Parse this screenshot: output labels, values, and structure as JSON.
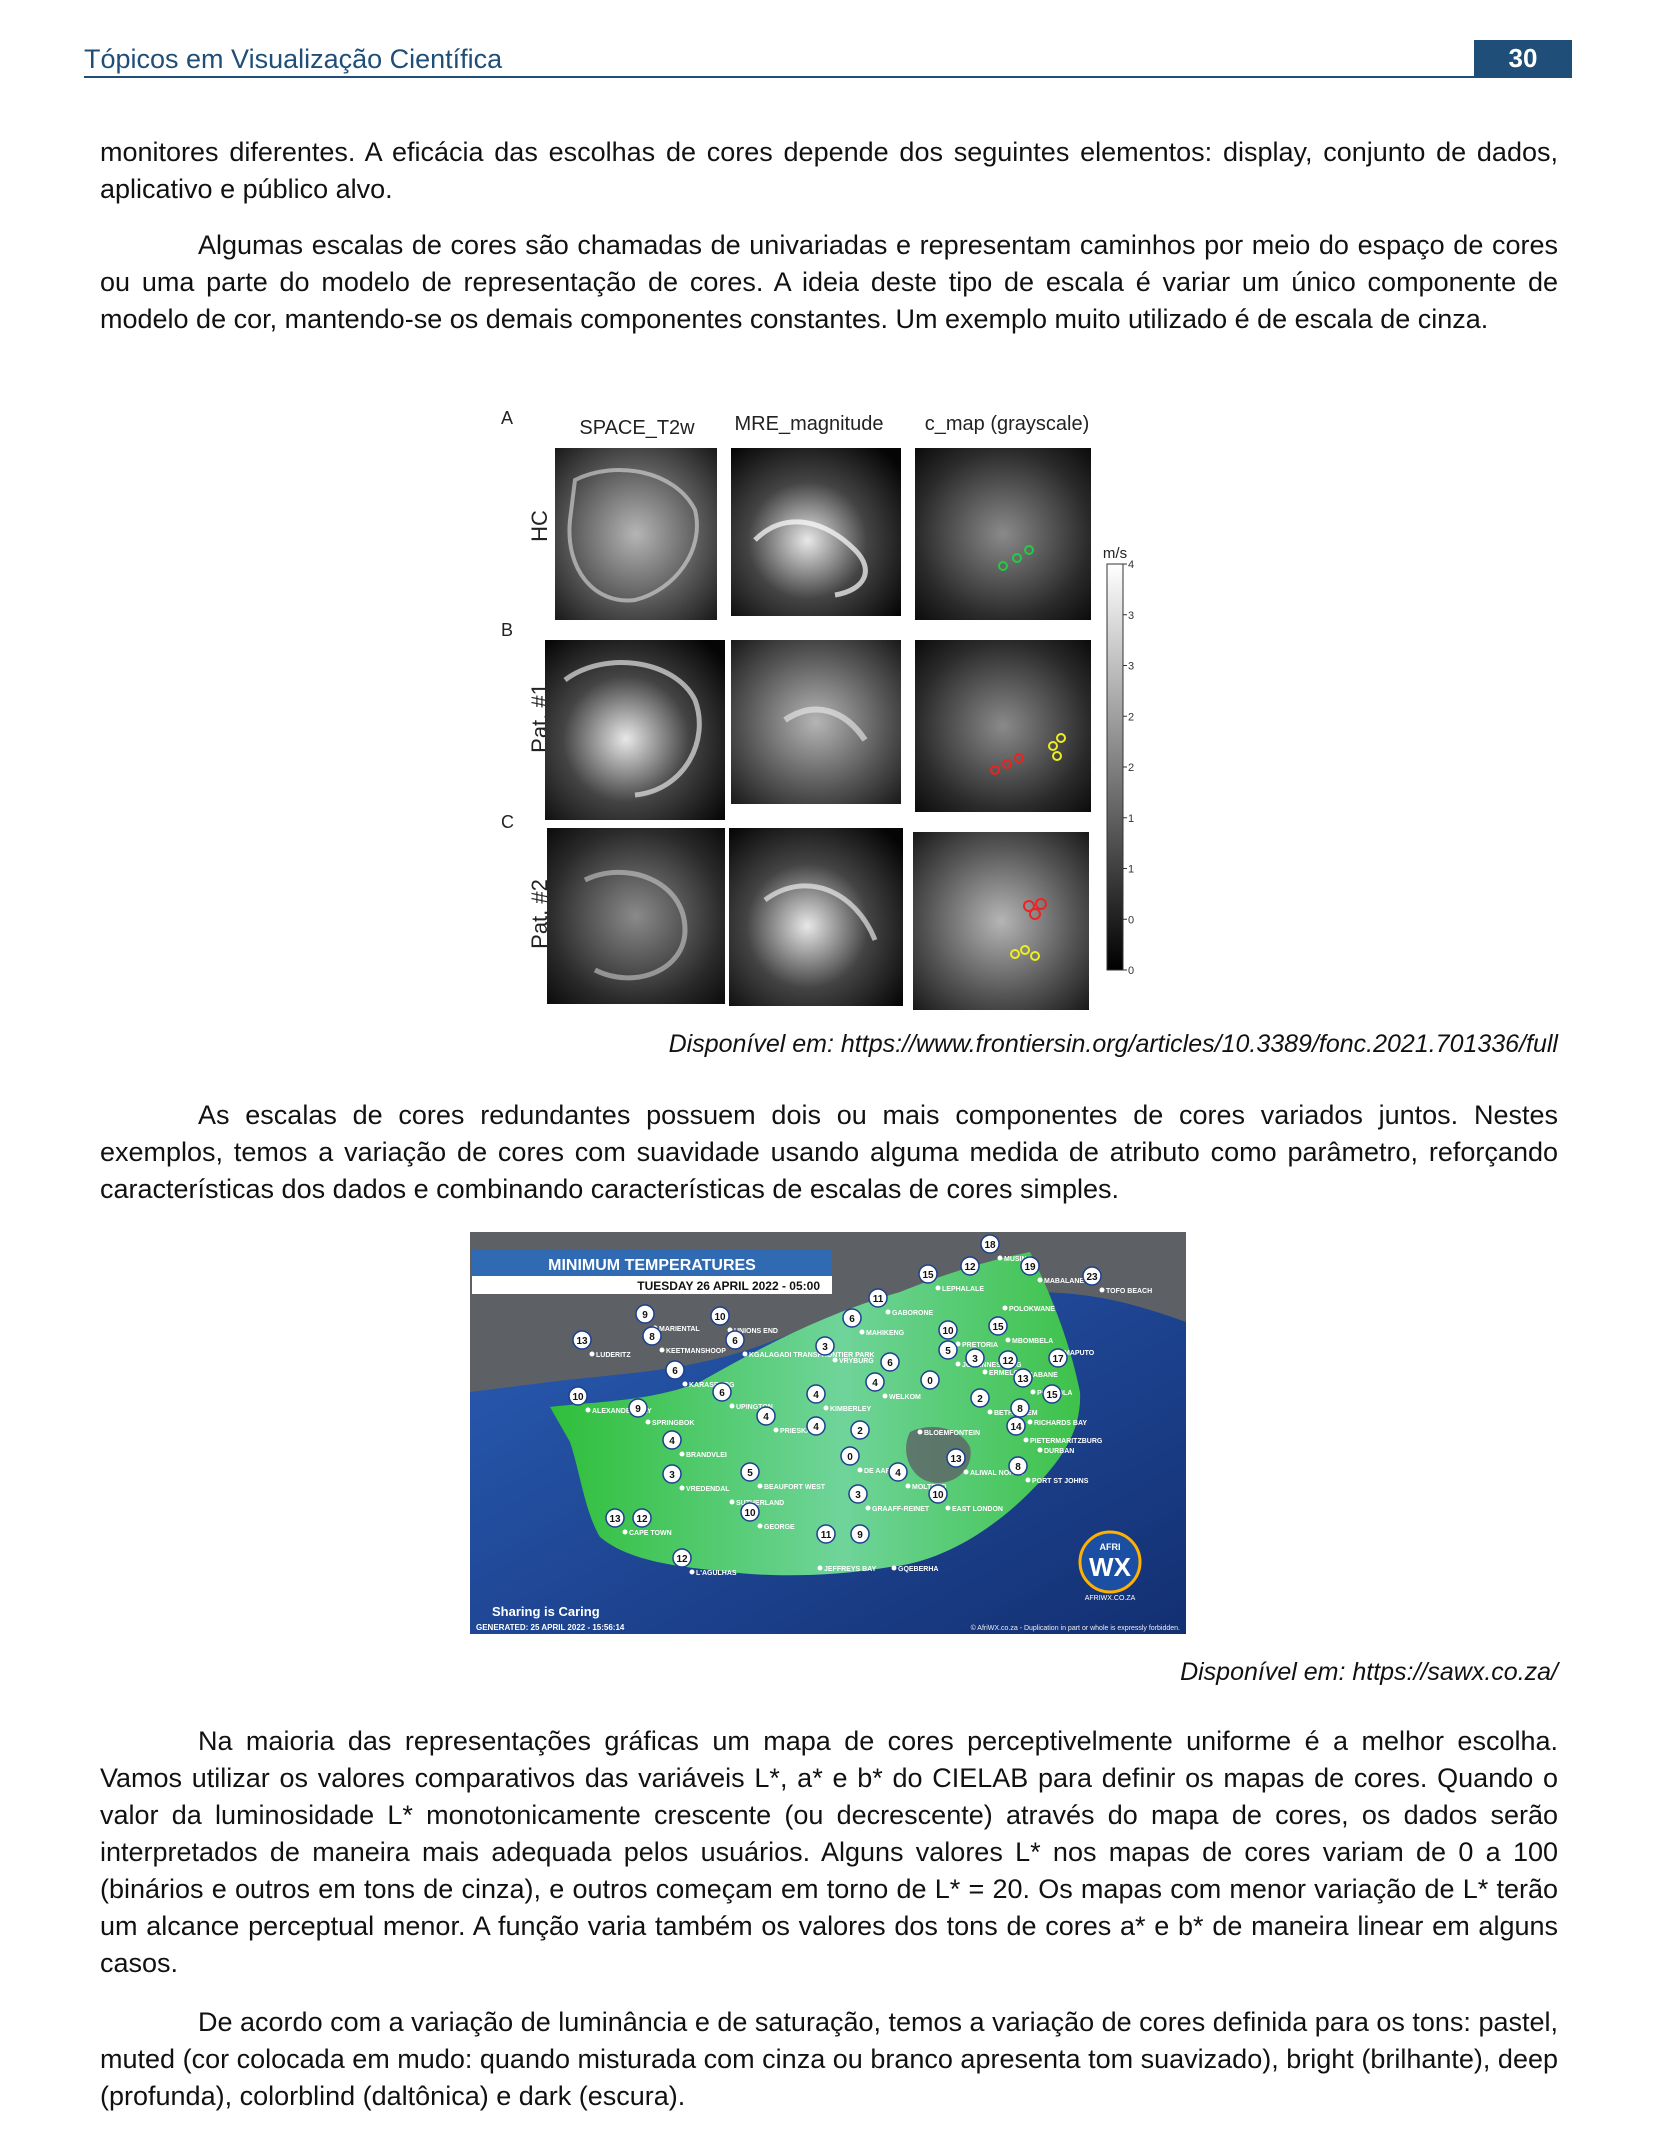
{
  "header": {
    "title": "Tópicos em Visualização Científica",
    "page_number": "30"
  },
  "paragraphs": {
    "p1": "monitores diferentes. A eficácia das escolhas de cores depende dos seguintes elementos: display, conjunto de dados, aplicativo e público alvo.",
    "p2": "Algumas escalas de cores são chamadas de univariadas e representam caminhos por meio do espaço de cores ou uma parte do modelo de representação de cores. A ideia deste tipo de escala é variar um único componente de modelo de cor, mantendo-se os demais componentes constantes. Um exemplo muito utilizado é de escala de cinza.",
    "p3": "As escalas de cores redundantes possuem dois ou mais componentes de cores variados juntos. Nestes exemplos, temos a variação de cores com suavidade usando alguma medida de atributo como parâmetro, reforçando características dos dados e combinando características de escalas de cores simples.",
    "p4": "Na maioria das representações gráficas um mapa de cores perceptivelmente uniforme é a melhor escolha. Vamos utilizar os valores comparativos das variáveis L*, a* e b* do CIELAB para definir os mapas de cores. Quando o valor da luminosidade L* monotonicamente crescente (ou decrescente) através do mapa de cores, os dados serão interpretados de maneira mais adequada pelos usuários. Alguns valores L* nos mapas de cores variam de 0 a 100 (binários e outros em tons de cinza), e outros começam em torno de L* = 20. Os mapas com menor variação de L* terão um alcance perceptual menor. A função varia também os valores dos tons de cores a* e b* de maneira linear em alguns casos.",
    "p5": "De acordo com a variação de luminância e de saturação, temos a variação de cores definida para os tons: pastel, muted (cor colocada em mudo: quando misturada com cinza ou branco apresenta tom suavizado), bright (brilhante), deep (profunda), colorblind (daltônica) e dark (escura)."
  },
  "figure1": {
    "panel_letters": [
      "A",
      "B",
      "C"
    ],
    "column_titles": [
      "SPACE_T2w",
      "MRE_magnitude",
      "c_map (grayscale)"
    ],
    "row_labels": [
      "HC",
      "Pat. #1",
      "Pat. #2"
    ],
    "colorbar_unit": "m/s",
    "colorbar_ticks": [
      "4",
      "3.5",
      "3",
      "2.5",
      "2",
      "1.5",
      "1",
      "0.5",
      "0"
    ],
    "caption": "Disponível em: https://www.frontiersin.org/articles/10.3389/fonc.2021.701336/full"
  },
  "figure2": {
    "title": "MINIMUM TEMPERATURES",
    "subtitle": "TUESDAY 26 APRIL 2022 - 05:00",
    "footer_left": "Sharing is Caring",
    "generated": "GENERATED: 25 APRIL 2022 - 15:56:14",
    "copyright": "© AfriWX.co.za - Duplication in part or whole is expressly forbidden.",
    "logo_text": "WX",
    "logo_small": "AFRI",
    "logo_url": "AFRIWX.CO.ZA",
    "caption": "Disponível em: https://sawx.co.za/",
    "colors": {
      "ocean": "#1c3f8f",
      "land_outer": "#5a5f63",
      "land_green": "#3ec24a",
      "land_cool": "#6fc8b8"
    },
    "stations": [
      {
        "name": "MUSINA",
        "temp": "18"
      },
      {
        "name": "",
        "temp": "12"
      },
      {
        "name": "LEPHALALE",
        "temp": "15"
      },
      {
        "name": "MABALANE",
        "temp": "19"
      },
      {
        "name": "TOFO BEACH",
        "temp": "23"
      },
      {
        "name": "POLOKWANE",
        "temp": ""
      },
      {
        "name": "GABORONE",
        "temp": "11"
      },
      {
        "name": "MARIENTAL",
        "temp": "9"
      },
      {
        "name": "UNIONS END",
        "temp": "10"
      },
      {
        "name": "MAHIKENG",
        "temp": "6"
      },
      {
        "name": "PRETORIA",
        "temp": "10"
      },
      {
        "name": "MBOMBELA",
        "temp": "15"
      },
      {
        "name": "MAPUTO",
        "temp": ""
      },
      {
        "name": "LUDERITZ",
        "temp": "13"
      },
      {
        "name": "KEETMANSHOOP",
        "temp": "8"
      },
      {
        "name": "KGALAGADI TRANSFRONTIER PARK",
        "temp": "6"
      },
      {
        "name": "JOHANNESBURG",
        "temp": "5"
      },
      {
        "name": "ERMELO",
        "temp": "3"
      },
      {
        "name": "MBABANE",
        "temp": "12"
      },
      {
        "name": "",
        "temp": "17"
      },
      {
        "name": "VRYBURG",
        "temp": "3"
      },
      {
        "name": "",
        "temp": "6"
      },
      {
        "name": "PONGOLA",
        "temp": "13"
      },
      {
        "name": "KARASBURG",
        "temp": "6"
      },
      {
        "name": "WELKOM",
        "temp": "4"
      },
      {
        "name": "",
        "temp": "0"
      },
      {
        "name": "ALEXANDER BAY",
        "temp": "10"
      },
      {
        "name": "UPINGTON",
        "temp": "6"
      },
      {
        "name": "KIMBERLEY",
        "temp": "4"
      },
      {
        "name": "BETHLEHEM",
        "temp": "2"
      },
      {
        "name": "",
        "temp": "15"
      },
      {
        "name": "RICHARDS BAY",
        "temp": "8"
      },
      {
        "name": "SPRINGBOK",
        "temp": "9"
      },
      {
        "name": "BLOEMFONTEIN",
        "temp": ""
      },
      {
        "name": "PIETERMARITZBURG",
        "temp": "14"
      },
      {
        "name": "DURBAN",
        "temp": ""
      },
      {
        "name": "PRIESKA",
        "temp": "4"
      },
      {
        "name": "",
        "temp": "4"
      },
      {
        "name": "",
        "temp": "2"
      },
      {
        "name": "BRANDVLEI",
        "temp": "4"
      },
      {
        "name": "DE AAR",
        "temp": "0"
      },
      {
        "name": "ALIWAL NORTH",
        "temp": "13"
      },
      {
        "name": "PORT ST JOHNS",
        "temp": "8"
      },
      {
        "name": "MOLTENO",
        "temp": "4"
      },
      {
        "name": "VREDENDAL",
        "temp": "3"
      },
      {
        "name": "BEAUFORT WEST",
        "temp": "5"
      },
      {
        "name": "GRAAFF-REINET",
        "temp": "3"
      },
      {
        "name": "EAST LONDON",
        "temp": "10"
      },
      {
        "name": "SUTHERLAND",
        "temp": ""
      },
      {
        "name": "CAPE TOWN",
        "temp": "13"
      },
      {
        "name": "",
        "temp": "12"
      },
      {
        "name": "GEORGE",
        "temp": "10"
      },
      {
        "name": "",
        "temp": "11"
      },
      {
        "name": "",
        "temp": "9"
      },
      {
        "name": "JEFFREYS BAY",
        "temp": ""
      },
      {
        "name": "GQEBERHA",
        "temp": ""
      },
      {
        "name": "L'AGULHAS",
        "temp": "12"
      }
    ]
  }
}
